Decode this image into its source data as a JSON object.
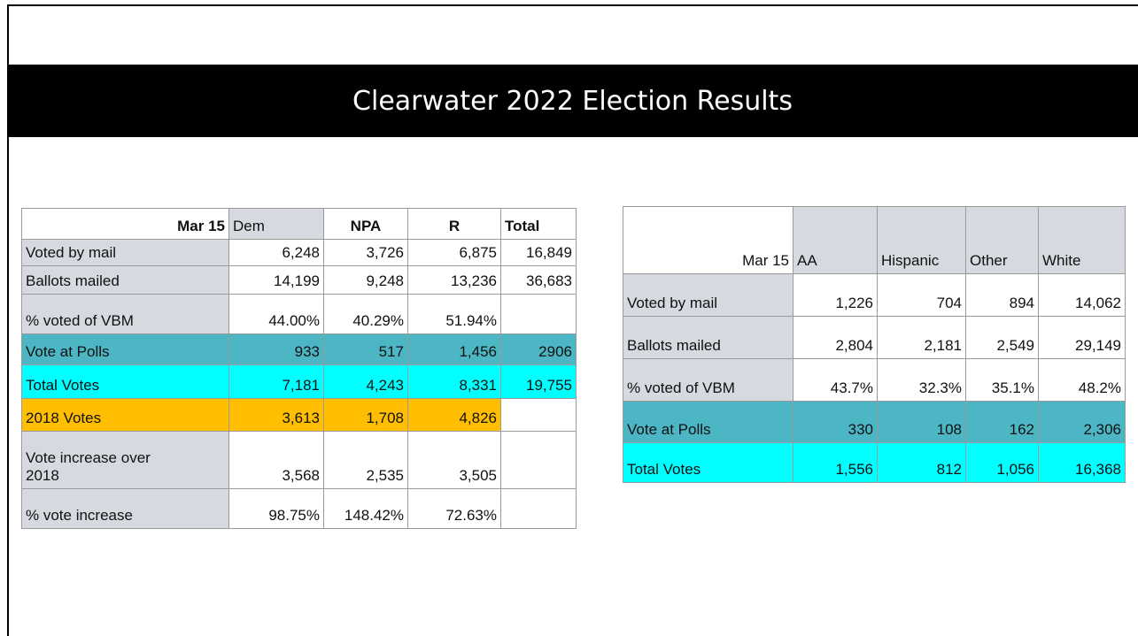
{
  "title": "Clearwater 2022 Election Results",
  "tables": [
    {
      "header": [
        "Mar 15",
        "Dem",
        "NPA",
        "R",
        "Total"
      ],
      "rows": [
        [
          "Voted by mail",
          "6,248",
          "3,726",
          "6,875",
          "16,849"
        ],
        [
          "Ballots mailed",
          "14,199",
          "9,248",
          "13,236",
          "36,683"
        ],
        [
          "% voted of VBM",
          "44.00%",
          "40.29%",
          "51.94%"
        ],
        [
          "Vote at Polls",
          "933",
          "517",
          "1,456",
          "2906"
        ],
        [
          "Total Votes",
          "7,181",
          "4,243",
          "8,331",
          "19,755"
        ],
        [
          "2018 Votes",
          "3,613",
          "1,708",
          "4,826"
        ],
        [
          "Vote increase over 2018",
          "3,568",
          "2,535",
          "3,505"
        ],
        [
          "% vote increase",
          "98.75%",
          "148.42%",
          "72.63%"
        ]
      ]
    },
    {
      "header": [
        "Mar 15",
        "AA",
        "Hispanic",
        "Other",
        "White"
      ],
      "rows": [
        [
          "Voted by mail",
          "1,226",
          "704",
          "894",
          "14,062"
        ],
        [
          "Ballots mailed",
          "2,804",
          "2,181",
          "2,549",
          "29,149"
        ],
        [
          "% voted of VBM",
          "43.7%",
          "32.3%",
          "35.1%",
          "48.2%"
        ],
        [
          "Vote at Polls",
          "330",
          "108",
          "162",
          "2,306"
        ],
        [
          "Total Votes",
          "1,556",
          "812",
          "1,056",
          "16,368"
        ]
      ]
    }
  ]
}
